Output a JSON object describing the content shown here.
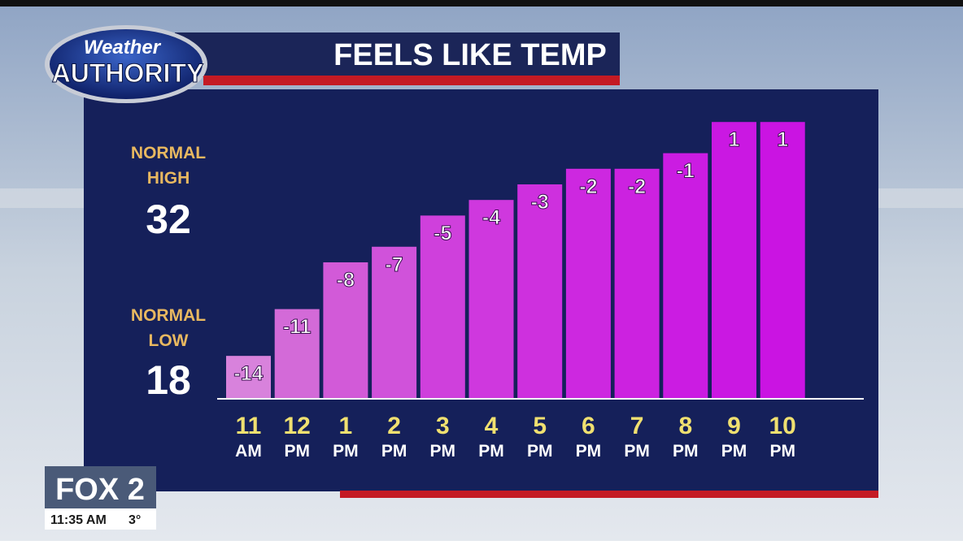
{
  "logo": {
    "line1": "Weather",
    "line2": "AUTHORITY"
  },
  "normals": {
    "high_label_1": "NORMAL",
    "high_label_2": "HIGH",
    "high": 32,
    "low_label_1": "NORMAL",
    "low_label_2": "LOW",
    "low": 18
  },
  "chart_data": {
    "type": "bar",
    "title": "FEELS LIKE TEMP",
    "categories": [
      "11",
      "12",
      "1",
      "2",
      "3",
      "4",
      "5",
      "6",
      "7",
      "8",
      "9",
      "10"
    ],
    "periods": [
      "AM",
      "PM",
      "PM",
      "PM",
      "PM",
      "PM",
      "PM",
      "PM",
      "PM",
      "PM",
      "PM",
      "PM"
    ],
    "values": [
      -14,
      -11,
      -8,
      -7,
      -5,
      -4,
      -3,
      -2,
      -2,
      -1,
      1,
      1
    ],
    "colors": [
      "#d882dc",
      "#d36ad8",
      "#d25ad8",
      "#d052da",
      "#cf40dc",
      "#cf38de",
      "#ce30de",
      "#cd28e0",
      "#cc22e0",
      "#cb1ce2",
      "#ca18e2",
      "#ca14e2"
    ],
    "ylim": [
      -16.7,
      2
    ]
  },
  "bug": {
    "network": "FOX 2",
    "time": "11:35 AM",
    "temp": "3°"
  }
}
